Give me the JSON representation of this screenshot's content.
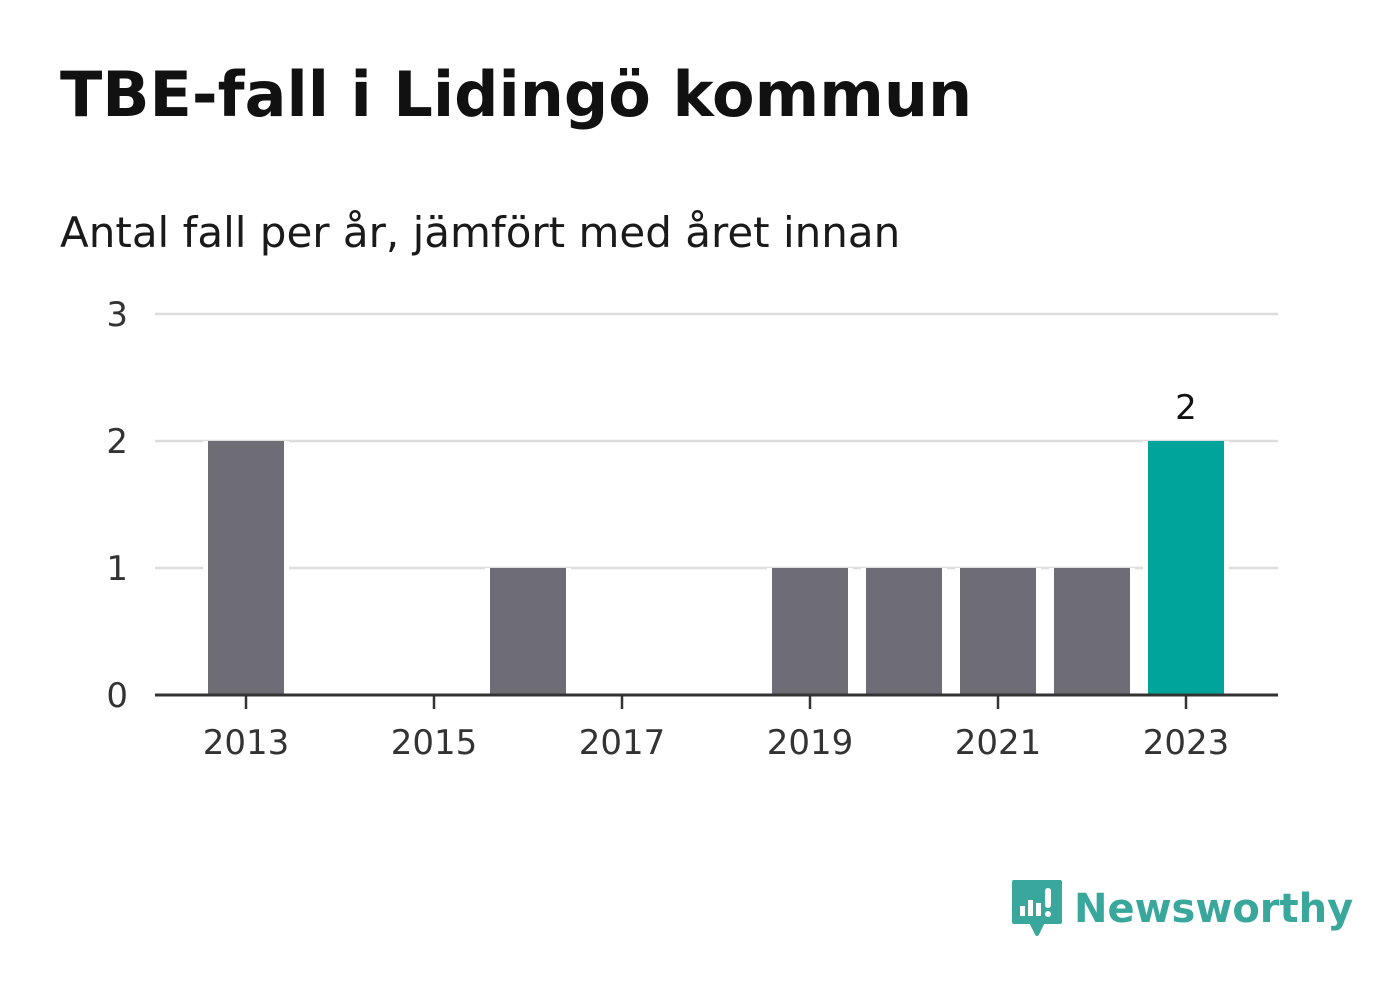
{
  "title": "TBE-fall i Lidingö kommun",
  "subtitle": "Antal fall per år, jämfört med året innan",
  "brand": {
    "name": "Newsworthy",
    "color": "#3aa79c",
    "icon": "newsworthy-logo-icon"
  },
  "colors": {
    "bar": "#6e6d76",
    "highlight": "#00a49a",
    "grid": "#dddddd",
    "axis": "#333333"
  },
  "chart_data": {
    "type": "bar",
    "categories": [
      2013,
      2014,
      2015,
      2016,
      2017,
      2018,
      2019,
      2020,
      2021,
      2022,
      2023
    ],
    "values": [
      2,
      0,
      0,
      1,
      0,
      0,
      1,
      1,
      1,
      1,
      2
    ],
    "highlight_index": 10,
    "highlight_label": "2",
    "x_tick_labels": [
      "2013",
      "2015",
      "2017",
      "2019",
      "2021",
      "2023"
    ],
    "y_ticks": [
      0,
      1,
      2,
      3
    ],
    "ylim": [
      0,
      3
    ],
    "grid": true,
    "xlabel": "",
    "ylabel": ""
  }
}
